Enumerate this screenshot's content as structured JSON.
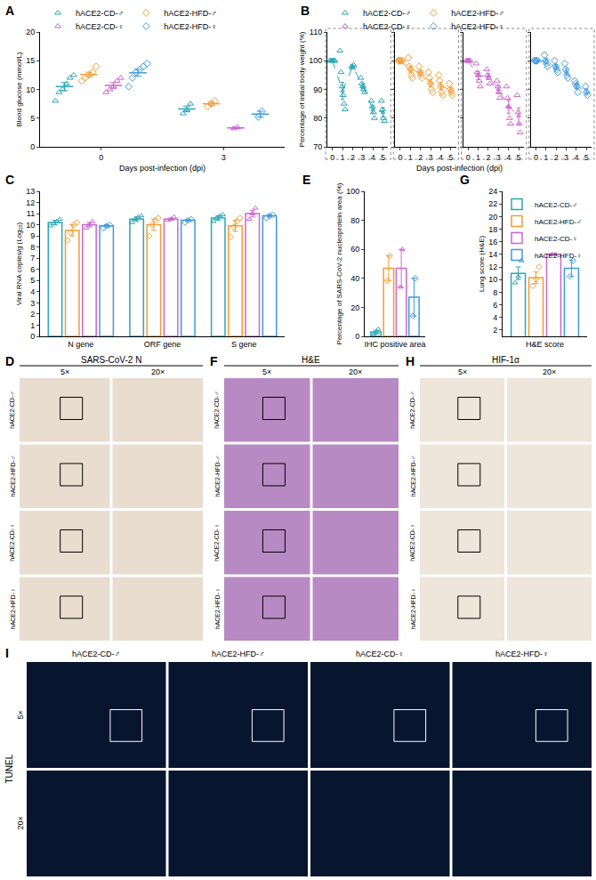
{
  "chart_data": [
    {
      "panel": "A",
      "type": "scatter",
      "xlabel": "Days post-infection (dpi)",
      "ylabel": "Blood glucose (mmol/L)",
      "categories": [
        "0",
        "3"
      ],
      "ylim": [
        0,
        20
      ],
      "yticks": [
        0,
        5,
        10,
        15,
        20
      ],
      "grid": false,
      "legend": "top",
      "series": [
        {
          "name": "hACE2-CD-♂",
          "color": "#2ba6b5",
          "marker": "triangle",
          "points": [
            [
              8.0,
              9.5,
              10.0,
              11.0,
              12.0,
              12.5
            ],
            [
              5.8,
              6.5,
              7.5
            ]
          ],
          "mean": [
            10.5,
            6.6
          ],
          "error": [
            0.7,
            0.5
          ]
        },
        {
          "name": "hACE2-HFD-♂",
          "color": "#f39c34",
          "marker": "diamond",
          "points": [
            [
              11.5,
              12.0,
              12.5,
              13.0,
              14.0
            ],
            [
              7.0,
              7.5,
              8.0
            ]
          ],
          "mean": [
            12.6,
            7.5
          ],
          "error": [
            0.4,
            0.3
          ]
        },
        {
          "name": "hACE2-CD-♀",
          "color": "#cc66cc",
          "marker": "triangle",
          "points": [
            [
              9.5,
              10.0,
              10.5,
              11.5,
              12.0
            ],
            [
              3.2,
              3.4
            ]
          ],
          "mean": [
            10.7,
            3.3
          ],
          "error": [
            0.5,
            0.1
          ]
        },
        {
          "name": "hACE2-HFD-♀",
          "color": "#3d9ae0",
          "marker": "diamond",
          "points": [
            [
              10.5,
              12.0,
              13.0,
              13.5,
              14.0,
              14.5
            ],
            [
              5.2,
              6.2
            ]
          ],
          "mean": [
            12.9,
            5.7
          ],
          "error": [
            0.6,
            0.5
          ]
        }
      ]
    },
    {
      "panel": "B",
      "type": "line",
      "xlabel": "Days post-infection (dpi)",
      "ylabel": "Percentage of initial body weight (%)",
      "x": [
        0,
        1,
        2,
        3,
        4,
        5
      ],
      "xlim": [
        -0.5,
        5.5
      ],
      "xticks": [
        0,
        1,
        2,
        3,
        4,
        5
      ],
      "ylim": [
        70,
        110
      ],
      "yticks": [
        70,
        80,
        90,
        100,
        110
      ],
      "grid": false,
      "legend": "top",
      "line_style": "dashed",
      "series": [
        {
          "name": "hACE2-CD-♂",
          "color": "#2ba6b5",
          "marker": "triangle",
          "points": [
            [
              100,
              100,
              100,
              100,
              100,
              100
            ],
            [
              103.5,
              96,
              91,
              88,
              85,
              83
            ],
            [
              98,
              97.5,
              98.5
            ],
            [
              94,
              92,
              91,
              90,
              89
            ],
            [
              86,
              84,
              82,
              80
            ],
            [
              86,
              83,
              80,
              79
            ]
          ],
          "mean": [
            100,
            89.5,
            98,
            91.2,
            83,
            82
          ],
          "error": [
            0,
            3,
            0.5,
            1,
            1.3,
            1.6
          ]
        },
        {
          "name": "hACE2-HFD-♂",
          "color": "#f39c34",
          "marker": "diamond",
          "points": [
            [
              100,
              100,
              100,
              100,
              100
            ],
            [
              101,
              98,
              97,
              95,
              94
            ],
            [
              98,
              96,
              95,
              94
            ],
            [
              96,
              94,
              92,
              90,
              89
            ],
            [
              95,
              93,
              91,
              89,
              88
            ],
            [
              92,
              90,
              89,
              88
            ]
          ],
          "mean": [
            100,
            97,
            95.8,
            92.2,
            91.2,
            89.8
          ],
          "error": [
            0,
            1.2,
            0.9,
            1.3,
            1.3,
            0.9
          ]
        },
        {
          "name": "hACE2-CD-♀",
          "color": "#cc66cc",
          "marker": "triangle",
          "points": [
            [
              100,
              100,
              100,
              100,
              100
            ],
            [
              99,
              96,
              95,
              93,
              91
            ],
            [
              97,
              95,
              94,
              92
            ],
            [
              93,
              91,
              89,
              87
            ],
            [
              91,
              87,
              84,
              80,
              78
            ],
            [
              88,
              82,
              78,
              75
            ]
          ],
          "mean": [
            100,
            94.8,
            94.5,
            90,
            84,
            80.8
          ],
          "error": [
            0,
            1.4,
            1,
            1.3,
            2.3,
            2.8
          ]
        },
        {
          "name": "hACE2-HFD-♀",
          "color": "#3d9ae0",
          "marker": "diamond",
          "points": [
            [
              100,
              100,
              100,
              100
            ],
            [
              102,
              100,
              99,
              98
            ],
            [
              100,
              98,
              97,
              96
            ],
            [
              99,
              97,
              95,
              94
            ],
            [
              93,
              92,
              91,
              89
            ],
            [
              91,
              89,
              88
            ]
          ],
          "mean": [
            100,
            99.8,
            97.8,
            96.2,
            91.2,
            89.3
          ],
          "error": [
            0,
            0.9,
            0.9,
            1.1,
            0.9,
            0.9
          ]
        }
      ]
    },
    {
      "panel": "C",
      "type": "bar",
      "ylabel": "Viral RNA copies/g (Log₁₀)",
      "categories": [
        "N gene",
        "ORF gene",
        "S gene"
      ],
      "ylim": [
        0,
        13
      ],
      "yticks": [
        0,
        1,
        2,
        3,
        4,
        5,
        6,
        7,
        8,
        9,
        10,
        11,
        12,
        13
      ],
      "grid": false,
      "series": [
        {
          "name": "hACE2-CD-♂",
          "color": "#2ba6b5",
          "marker": "triangle",
          "values": [
            10.2,
            10.5,
            10.6
          ],
          "error": [
            0.2,
            0.2,
            0.2
          ],
          "points": [
            [
              9.9,
              10.1,
              10.3,
              10.5
            ],
            [
              10.2,
              10.5,
              10.7,
              10.8
            ],
            [
              10.3,
              10.6,
              10.8,
              10.9
            ]
          ]
        },
        {
          "name": "hACE2-HFD-♂",
          "color": "#f39c34",
          "marker": "diamond",
          "values": [
            9.5,
            10.0,
            9.9
          ],
          "error": [
            0.5,
            0.5,
            0.5
          ],
          "points": [
            [
              8.6,
              9.3,
              10.0,
              10.2
            ],
            [
              9.0,
              10.0,
              10.4,
              10.6
            ],
            [
              8.9,
              9.8,
              10.3,
              10.6
            ]
          ]
        },
        {
          "name": "hACE2-CD-♀",
          "color": "#cc66cc",
          "marker": "triangle",
          "values": [
            10.0,
            10.5,
            11.0
          ],
          "error": [
            0.2,
            0.1,
            0.3
          ],
          "points": [
            [
              9.7,
              10.0,
              10.3
            ],
            [
              10.4,
              10.5,
              10.7
            ],
            [
              10.5,
              11.0,
              11.5
            ]
          ]
        },
        {
          "name": "hACE2-HFD-♀",
          "color": "#3d9ae0",
          "marker": "diamond",
          "values": [
            9.9,
            10.4,
            10.8
          ],
          "error": [
            0.1,
            0.1,
            0.1
          ],
          "points": [
            [
              9.7,
              9.9,
              10.0
            ],
            [
              10.2,
              10.4,
              10.5
            ],
            [
              10.6,
              10.8,
              10.9
            ]
          ]
        }
      ]
    },
    {
      "panel": "E",
      "type": "bar",
      "ylabel": "Percentage of SARS-CoV-2 nucleoprotein area (%)",
      "categories": [
        "IHC positive area"
      ],
      "ylim": [
        0,
        100
      ],
      "yticks": [
        0,
        20,
        40,
        60,
        80,
        100
      ],
      "grid": false,
      "series": [
        {
          "name": "hACE2-CD-♂",
          "color": "#2ba6b5",
          "marker": "triangle",
          "values": [
            3
          ],
          "error": [
            1.2
          ],
          "points": [
            [
              1.5,
              2.5,
              5.0
            ]
          ]
        },
        {
          "name": "hACE2-HFD-♂",
          "color": "#f39c34",
          "marker": "diamond",
          "values": [
            47
          ],
          "error": [
            8.5
          ],
          "points": [
            [
              38.5,
              55.5
            ]
          ]
        },
        {
          "name": "hACE2-CD-♀",
          "color": "#cc66cc",
          "marker": "triangle",
          "values": [
            47
          ],
          "error": [
            13
          ],
          "points": [
            [
              34,
              60
            ]
          ]
        },
        {
          "name": "hACE2-HFD-♀",
          "color": "#3d9ae0",
          "marker": "diamond",
          "values": [
            27
          ],
          "error": [
            13
          ],
          "points": [
            [
              14,
              40
            ]
          ]
        }
      ]
    },
    {
      "panel": "G",
      "type": "bar",
      "ylabel": "Lung score (H&E)",
      "categories": [
        "H&E score"
      ],
      "ylim": [
        1,
        24
      ],
      "yticks": [
        2,
        4,
        6,
        8,
        10,
        12,
        14,
        16,
        18,
        20,
        22,
        24
      ],
      "grid": false,
      "legend": "top right",
      "series": [
        {
          "name": "hACE2-CD-♂",
          "color": "#2ba6b5",
          "marker": "triangle",
          "values": [
            11
          ],
          "error": [
            1
          ],
          "points": [
            [
              9.5,
              10.5,
              13
            ]
          ]
        },
        {
          "name": "hACE2-HFD-♂",
          "color": "#f39c34",
          "marker": "diamond",
          "values": [
            10.3
          ],
          "error": [
            0.9
          ],
          "points": [
            [
              9,
              10,
              12
            ]
          ]
        },
        {
          "name": "hACE2-CD-♀",
          "color": "#cc66cc",
          "marker": "triangle",
          "values": [
            14
          ],
          "error": [
            0.1
          ],
          "points": [
            [
              14,
              14
            ]
          ]
        },
        {
          "name": "hACE2-HFD-♀",
          "color": "#3d9ae0",
          "marker": "diamond",
          "values": [
            11.8
          ],
          "error": [
            1.3
          ],
          "points": [
            [
              10.5,
              13
            ]
          ]
        }
      ]
    }
  ],
  "image_panels": [
    {
      "panel": "D",
      "title": "SARS-CoV-2 N",
      "columns": [
        "5×",
        "20×"
      ],
      "rows": [
        "hACE2-CD-♂",
        "hACE2-HFD-♂",
        "hACE2-CD-♀",
        "hACE2-HFD-♀"
      ]
    },
    {
      "panel": "F",
      "title": "H&E",
      "columns": [
        "5×",
        "20×"
      ],
      "rows": [
        "hACE2-CD-♂",
        "hACE2-HFD-♂",
        "hACE2-CD-♀",
        "hACE2-HFD-♀"
      ]
    },
    {
      "panel": "H",
      "title": "HIF-1α",
      "columns": [
        "5×",
        "20×"
      ],
      "rows": [
        "hACE2-CD-♂",
        "hACE2-HFD-♂",
        "hACE2-CD-♀",
        "hACE2-HFD-♀"
      ]
    },
    {
      "panel": "I",
      "title": "TUNEL",
      "columns": [
        "hACE2-CD-♂",
        "hACE2-HFD-♂",
        "hACE2-CD-♀",
        "hACE2-HFD-♀"
      ],
      "rows": [
        "5×",
        "20×"
      ]
    }
  ]
}
